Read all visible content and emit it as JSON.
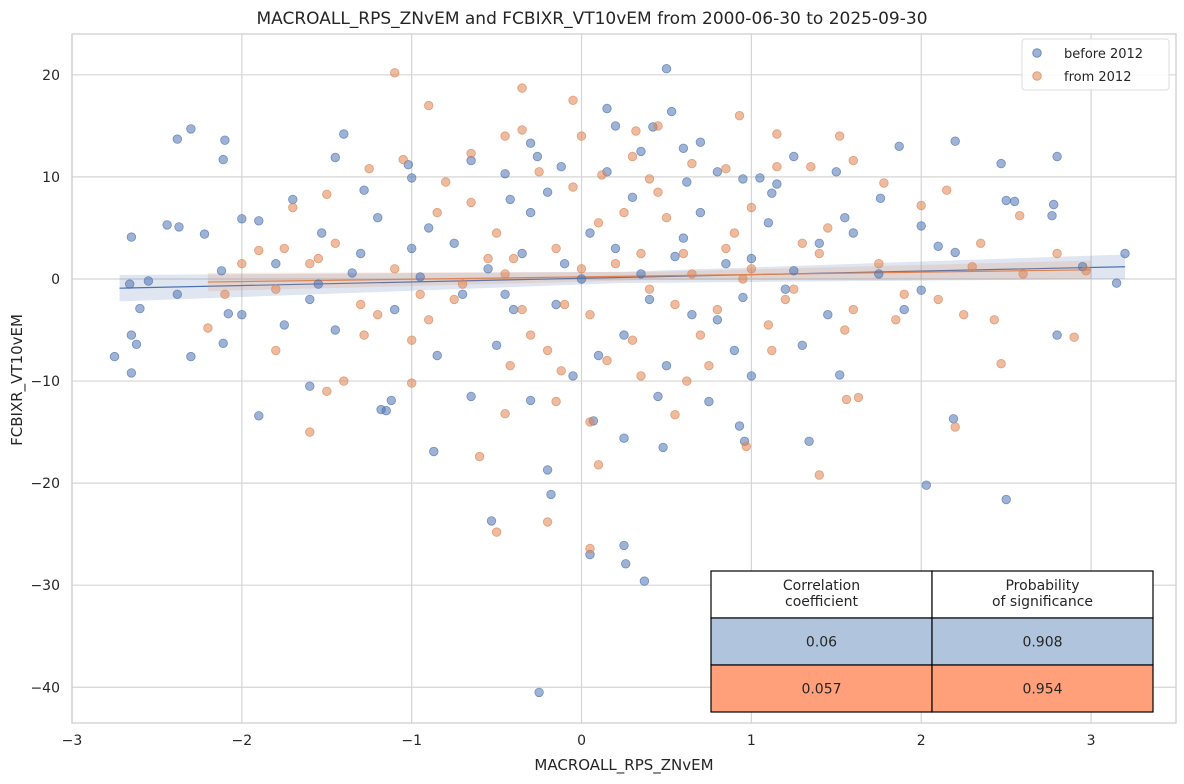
{
  "chart_data": {
    "type": "scatter",
    "title": "MACROALL_RPS_ZNvEM and FCBIXR_VT10vEM from 2000-06-30 to 2025-09-30",
    "xlabel": "MACROALL_RPS_ZNvEM",
    "ylabel": "FCBIXR_VT10vEM",
    "xlim": [
      -3.0,
      3.5
    ],
    "ylim": [
      -43.5,
      24.0
    ],
    "x_ticks": [
      -3,
      -2,
      -1,
      0,
      1,
      2,
      3
    ],
    "x_tick_labels": [
      "−3",
      "−2",
      "−1",
      "0",
      "1",
      "2",
      "3"
    ],
    "y_ticks": [
      -40,
      -30,
      -20,
      -10,
      0,
      10,
      20
    ],
    "y_tick_labels": [
      "−40",
      "−30",
      "−20",
      "−10",
      "0",
      "10",
      "20"
    ],
    "grid": true,
    "legend_position": "top-right",
    "series": [
      {
        "name": "before 2012",
        "color": "#4c72b0",
        "fit": {
          "x": [
            -2.72,
            3.2
          ],
          "y": [
            -0.9,
            1.2
          ]
        },
        "points": [
          [
            0.5,
            20.6
          ],
          [
            -2.3,
            14.7
          ],
          [
            -2.1,
            13.6
          ],
          [
            -2.38,
            13.7
          ],
          [
            -1.4,
            14.2
          ],
          [
            2.2,
            13.5
          ],
          [
            -0.3,
            13.3
          ],
          [
            0.53,
            16.4
          ],
          [
            0.15,
            16.7
          ],
          [
            1.87,
            13.0
          ],
          [
            2.8,
            12.0
          ],
          [
            -2.11,
            11.7
          ],
          [
            2.47,
            11.3
          ],
          [
            -1.45,
            11.9
          ],
          [
            0.6,
            12.8
          ],
          [
            1.25,
            12.0
          ],
          [
            -2.65,
            4.1
          ],
          [
            -2.44,
            5.3
          ],
          [
            -2.0,
            5.9
          ],
          [
            -1.9,
            5.7
          ],
          [
            -2.22,
            4.4
          ],
          [
            -2.37,
            5.1
          ],
          [
            -2.55,
            -0.2
          ],
          [
            -2.66,
            -0.5
          ],
          [
            -2.38,
            -1.5
          ],
          [
            -2.12,
            0.8
          ],
          [
            -2.6,
            -2.9
          ],
          [
            -2.75,
            -7.6
          ],
          [
            -2.65,
            -5.5
          ],
          [
            -2.62,
            -6.4
          ],
          [
            -2.65,
            -9.2
          ],
          [
            -2.3,
            -7.6
          ],
          [
            -2.11,
            -6.3
          ],
          [
            -1.9,
            -13.4
          ],
          [
            -2.08,
            -3.4
          ],
          [
            -1.6,
            -10.5
          ],
          [
            -1.18,
            -12.8
          ],
          [
            -1.15,
            -12.9
          ],
          [
            -1.12,
            -11.9
          ],
          [
            -0.87,
            -16.9
          ],
          [
            -0.3,
            -11.9
          ],
          [
            -0.2,
            -18.7
          ],
          [
            -0.18,
            -21.1
          ],
          [
            -0.53,
            -23.7
          ],
          [
            -0.25,
            -40.5
          ],
          [
            0.05,
            -27.0
          ],
          [
            0.25,
            -26.1
          ],
          [
            0.26,
            -27.9
          ],
          [
            0.37,
            -29.6
          ],
          [
            0.48,
            -16.5
          ],
          [
            0.25,
            -15.6
          ],
          [
            0.07,
            -13.9
          ],
          [
            2.03,
            -20.2
          ],
          [
            2.5,
            -21.6
          ],
          [
            1.34,
            -15.9
          ],
          [
            0.93,
            -14.4
          ],
          [
            0.96,
            -15.9
          ],
          [
            1.52,
            -9.4
          ],
          [
            2.19,
            -13.7
          ],
          [
            2.8,
            -5.5
          ],
          [
            3.15,
            -0.4
          ],
          [
            3.2,
            2.5
          ],
          [
            2.95,
            1.2
          ],
          [
            2.77,
            6.2
          ],
          [
            2.5,
            7.7
          ],
          [
            2.55,
            7.6
          ],
          [
            2.78,
            7.3
          ],
          [
            2.2,
            2.6
          ],
          [
            2.1,
            3.2
          ],
          [
            2.0,
            -1.1
          ],
          [
            2.0,
            5.2
          ],
          [
            1.76,
            7.9
          ],
          [
            1.5,
            10.5
          ],
          [
            1.05,
            9.9
          ],
          [
            0.8,
            10.5
          ],
          [
            -1.53,
            4.5
          ],
          [
            -1.7,
            7.8
          ],
          [
            -1.35,
            0.6
          ],
          [
            -1.0,
            9.9
          ],
          [
            -1.02,
            11.2
          ],
          [
            -0.65,
            11.6
          ],
          [
            -0.45,
            10.3
          ],
          [
            -0.26,
            12.0
          ],
          [
            0.2,
            15.0
          ],
          [
            0.42,
            14.9
          ],
          [
            0.7,
            13.4
          ],
          [
            0.95,
            9.8
          ],
          [
            1.15,
            9.3
          ],
          [
            -0.7,
            -1.5
          ],
          [
            -0.4,
            -3.0
          ],
          [
            -0.1,
            1.5
          ],
          [
            0.2,
            3.0
          ],
          [
            0.4,
            -2.0
          ],
          [
            0.6,
            4.0
          ],
          [
            0.8,
            -4.0
          ],
          [
            1.0,
            2.0
          ],
          [
            1.2,
            -1.0
          ],
          [
            1.4,
            3.5
          ],
          [
            -1.1,
            -3.0
          ],
          [
            -1.3,
            2.5
          ],
          [
            -1.6,
            -2.0
          ],
          [
            -0.9,
            5.0
          ],
          [
            -0.5,
            -6.5
          ],
          [
            -0.3,
            6.5
          ],
          [
            0.1,
            -7.5
          ],
          [
            0.3,
            8.0
          ],
          [
            0.5,
            -8.5
          ],
          [
            0.7,
            6.5
          ],
          [
            0.9,
            -7.0
          ],
          [
            1.1,
            5.5
          ],
          [
            1.3,
            -6.5
          ],
          [
            1.6,
            4.5
          ],
          [
            -1.8,
            1.5
          ],
          [
            -2.0,
            -3.5
          ],
          [
            -0.15,
            -2.5
          ],
          [
            0.05,
            4.5
          ],
          [
            0.35,
            0.5
          ],
          [
            0.65,
            -3.5
          ],
          [
            -0.75,
            3.5
          ],
          [
            -0.55,
            1.0
          ],
          [
            1.75,
            0.5
          ],
          [
            1.9,
            -3.0
          ],
          [
            -1.2,
            6.0
          ],
          [
            -0.85,
            -7.5
          ],
          [
            0.15,
            10.5
          ],
          [
            0.45,
            -11.5
          ],
          [
            -0.05,
            -9.5
          ],
          [
            0.75,
            -12.0
          ],
          [
            -0.65,
            -11.5
          ],
          [
            1.0,
            -9.5
          ],
          [
            -1.45,
            -5.0
          ],
          [
            1.45,
            -3.5
          ],
          [
            -0.2,
            8.5
          ],
          [
            0.25,
            -5.5
          ],
          [
            -0.35,
            2.5
          ],
          [
            0.55,
            2.2
          ],
          [
            0.85,
            1.5
          ],
          [
            -0.95,
            0.2
          ],
          [
            1.25,
            0.8
          ],
          [
            -1.55,
            -0.5
          ],
          [
            0.0,
            0.0
          ],
          [
            -0.45,
            -1.5
          ],
          [
            0.95,
            -1.8
          ],
          [
            -1.0,
            3.0
          ],
          [
            1.55,
            6.0
          ],
          [
            -1.75,
            -4.5
          ],
          [
            0.35,
            12.5
          ],
          [
            -0.12,
            11.0
          ],
          [
            0.62,
            9.5
          ],
          [
            -0.42,
            7.8
          ],
          [
            1.12,
            8.4
          ],
          [
            -1.28,
            8.7
          ]
        ]
      },
      {
        "name": "from 2012",
        "color": "#dd8452",
        "fit": {
          "x": [
            -2.2,
            3.0
          ],
          "y": [
            -0.3,
            0.9
          ]
        },
        "points": [
          [
            -1.1,
            20.2
          ],
          [
            -0.35,
            18.7
          ],
          [
            -0.9,
            17.0
          ],
          [
            -0.05,
            17.5
          ],
          [
            -0.35,
            14.6
          ],
          [
            0.32,
            14.5
          ],
          [
            0.93,
            16.0
          ],
          [
            -0.45,
            14.0
          ],
          [
            1.15,
            14.2
          ],
          [
            1.52,
            14.0
          ],
          [
            0.45,
            15.0
          ],
          [
            0.3,
            12.0
          ],
          [
            -0.5,
            -24.8
          ],
          [
            -0.2,
            -23.8
          ],
          [
            0.05,
            -26.4
          ],
          [
            0.1,
            -18.2
          ],
          [
            -0.6,
            -17.4
          ],
          [
            -0.45,
            -13.2
          ],
          [
            0.05,
            -14.0
          ],
          [
            0.55,
            -13.3
          ],
          [
            1.4,
            -19.2
          ],
          [
            2.2,
            -14.5
          ],
          [
            0.97,
            -16.4
          ],
          [
            1.56,
            -11.8
          ],
          [
            1.63,
            -11.6
          ],
          [
            -1.0,
            -10.2
          ],
          [
            -1.5,
            -11.0
          ],
          [
            -1.6,
            -15.0
          ],
          [
            -2.2,
            -4.8
          ],
          [
            -1.8,
            -7.0
          ],
          [
            -1.4,
            -10.0
          ],
          [
            2.43,
            -4.0
          ],
          [
            2.47,
            -8.3
          ],
          [
            2.9,
            -5.7
          ],
          [
            2.97,
            0.8
          ],
          [
            2.3,
            1.2
          ],
          [
            2.58,
            6.2
          ],
          [
            2.15,
            8.7
          ],
          [
            1.78,
            9.4
          ],
          [
            1.15,
            11.0
          ],
          [
            -1.5,
            8.3
          ],
          [
            -1.7,
            7.0
          ],
          [
            -1.25,
            10.8
          ],
          [
            -1.05,
            11.7
          ],
          [
            -0.65,
            12.3
          ],
          [
            0.0,
            14.0
          ],
          [
            0.65,
            11.3
          ],
          [
            1.35,
            11.0
          ],
          [
            1.6,
            11.6
          ],
          [
            -0.7,
            -0.5
          ],
          [
            -0.4,
            2.0
          ],
          [
            -0.1,
            -2.5
          ],
          [
            0.2,
            1.5
          ],
          [
            0.4,
            -1.0
          ],
          [
            0.6,
            2.5
          ],
          [
            0.8,
            -3.0
          ],
          [
            1.0,
            1.0
          ],
          [
            1.2,
            -2.0
          ],
          [
            1.4,
            2.5
          ],
          [
            -1.1,
            1.0
          ],
          [
            -1.3,
            -2.5
          ],
          [
            -1.6,
            1.5
          ],
          [
            -0.9,
            -4.0
          ],
          [
            -0.5,
            4.5
          ],
          [
            -0.3,
            -5.5
          ],
          [
            0.1,
            5.5
          ],
          [
            0.3,
            -6.0
          ],
          [
            0.5,
            6.0
          ],
          [
            0.7,
            -5.5
          ],
          [
            0.9,
            4.5
          ],
          [
            1.1,
            -4.5
          ],
          [
            1.3,
            3.5
          ],
          [
            1.6,
            -3.0
          ],
          [
            -1.8,
            -1.0
          ],
          [
            -2.0,
            1.5
          ],
          [
            -0.15,
            3.0
          ],
          [
            0.05,
            -3.5
          ],
          [
            0.35,
            2.5
          ],
          [
            0.65,
            0.5
          ],
          [
            -0.75,
            -2.0
          ],
          [
            -0.55,
            2.0
          ],
          [
            1.75,
            1.5
          ],
          [
            1.9,
            -1.5
          ],
          [
            -1.2,
            -3.5
          ],
          [
            -0.85,
            6.5
          ],
          [
            0.15,
            -8.0
          ],
          [
            0.45,
            8.5
          ],
          [
            -0.05,
            9.0
          ],
          [
            0.75,
            -8.5
          ],
          [
            -0.65,
            7.5
          ],
          [
            1.0,
            7.0
          ],
          [
            -1.45,
            3.5
          ],
          [
            1.45,
            5.0
          ],
          [
            -0.2,
            -7.0
          ],
          [
            0.25,
            6.5
          ],
          [
            -0.35,
            -3.0
          ],
          [
            0.55,
            -2.5
          ],
          [
            0.85,
            3.0
          ],
          [
            -0.95,
            -1.5
          ],
          [
            1.25,
            -1.0
          ],
          [
            -1.55,
            2.0
          ],
          [
            0.0,
            1.0
          ],
          [
            -0.45,
            0.5
          ],
          [
            0.95,
            0.0
          ],
          [
            -1.0,
            -6.0
          ],
          [
            1.55,
            -5.0
          ],
          [
            -1.75,
            3.0
          ],
          [
            0.35,
            -9.5
          ],
          [
            -0.12,
            -9.0
          ],
          [
            0.62,
            -10.0
          ],
          [
            -0.42,
            -8.5
          ],
          [
            1.12,
            -7.0
          ],
          [
            -1.28,
            -5.5
          ],
          [
            2.1,
            -2.0
          ],
          [
            2.35,
            3.5
          ],
          [
            2.6,
            0.5
          ],
          [
            2.8,
            2.5
          ],
          [
            2.0,
            7.2
          ],
          [
            2.25,
            -3.5
          ],
          [
            1.85,
            -4.0
          ],
          [
            -2.1,
            -1.5
          ],
          [
            -1.9,
            2.8
          ],
          [
            -0.25,
            10.5
          ],
          [
            0.12,
            10.2
          ],
          [
            0.4,
            9.8
          ],
          [
            -0.8,
            9.5
          ],
          [
            0.85,
            10.8
          ],
          [
            -0.15,
            -12.0
          ]
        ]
      }
    ],
    "table": {
      "headers": [
        "Correlation\ncoefficient",
        "Probability\nof significance"
      ],
      "rows": [
        {
          "values": [
            "0.06",
            "0.908"
          ],
          "color": "#b0c4de"
        },
        {
          "values": [
            "0.057",
            "0.954"
          ],
          "color": "#ffa07a"
        }
      ]
    }
  }
}
